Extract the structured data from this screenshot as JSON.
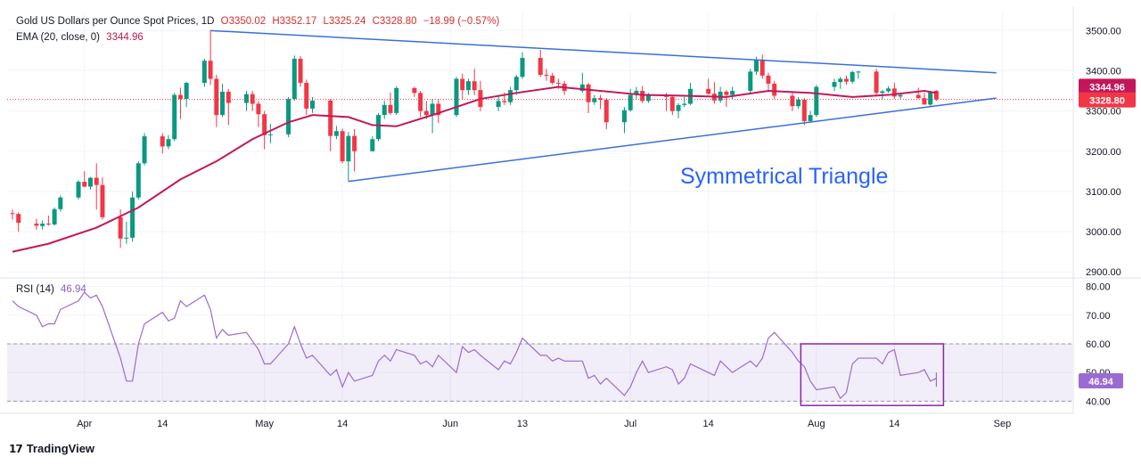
{
  "legend": {
    "symbol": "Gold US Dollars per Ounce Spot Prices, 1D",
    "open": "O3350.02",
    "high": "H3352.17",
    "low": "L3325.24",
    "close": "C3328.80",
    "change": "−18.99 (−0.57%)",
    "ema_label": "EMA (20, close, 0)",
    "ema_value": "3344.96",
    "rsi_label": "RSI (14)",
    "rsi_value": "46.94"
  },
  "annotation": "Symmetrical Triangle",
  "brand": "TradingView",
  "colors": {
    "up": "#089981",
    "down": "#f23645",
    "ema": "#c2185b",
    "rsi": "#9c6ad3",
    "trendline": "#3a6fd8",
    "box": "#8e24aa"
  },
  "chart_data": {
    "type": "candlestick",
    "x_ticks": [
      {
        "label": "Apr",
        "date": "2025-04-01"
      },
      {
        "label": "14",
        "date": "2025-04-14"
      },
      {
        "label": "May",
        "date": "2025-05-01"
      },
      {
        "label": "14",
        "date": "2025-05-14"
      },
      {
        "label": "Jun",
        "date": "2025-06-01"
      },
      {
        "label": "13",
        "date": "2025-06-13"
      },
      {
        "label": "Jul",
        "date": "2025-07-01"
      },
      {
        "label": "14",
        "date": "2025-07-14"
      },
      {
        "label": "Aug",
        "date": "2025-08-01"
      },
      {
        "label": "14",
        "date": "2025-08-14"
      },
      {
        "label": "Sep",
        "date": "2025-09-01"
      }
    ],
    "price_axis": {
      "ticks": [
        "3500.00",
        "3400.00",
        "3300.00",
        "3200.00",
        "3100.00",
        "3000.00",
        "2900.00"
      ],
      "range": [
        2885,
        3545
      ]
    },
    "rsi_axis": {
      "ticks": [
        "80.00",
        "70.00",
        "60.00",
        "50.00",
        "40.00"
      ],
      "range": [
        37,
        83
      ],
      "band": [
        40,
        60
      ]
    },
    "price_tags": [
      {
        "label": "3344.96",
        "value": 3344.96,
        "color": "#c2185b"
      },
      {
        "label": "3328.80",
        "value": 3328.8,
        "color": "#f23645"
      }
    ],
    "rsi_tag": {
      "label": "46.94",
      "value": 46.94
    },
    "candles": [
      [
        "2025-03-20",
        3046,
        3055,
        3030,
        3044
      ],
      [
        "2025-03-21",
        3044,
        3048,
        3000,
        3022
      ],
      [
        "2025-03-24",
        3020,
        3032,
        3005,
        3015
      ],
      [
        "2025-03-25",
        3014,
        3028,
        3005,
        3020
      ],
      [
        "2025-03-26",
        3020,
        3040,
        3015,
        3018
      ],
      [
        "2025-03-27",
        3018,
        3060,
        3015,
        3056
      ],
      [
        "2025-03-28",
        3056,
        3090,
        3050,
        3085
      ],
      [
        "2025-03-31",
        3085,
        3128,
        3080,
        3124
      ],
      [
        "2025-04-01",
        3124,
        3150,
        3110,
        3112
      ],
      [
        "2025-04-02",
        3112,
        3136,
        3105,
        3134
      ],
      [
        "2025-04-03",
        3134,
        3170,
        3055,
        3116
      ],
      [
        "2025-04-04",
        3116,
        3135,
        3030,
        3036
      ],
      [
        "2025-04-07",
        3036,
        3055,
        2960,
        2983
      ],
      [
        "2025-04-08",
        2983,
        3025,
        2970,
        2985
      ],
      [
        "2025-04-09",
        2985,
        3100,
        2975,
        3085
      ],
      [
        "2025-04-10",
        3085,
        3175,
        3080,
        3170
      ],
      [
        "2025-04-11",
        3170,
        3245,
        3165,
        3237
      ],
      [
        "2025-04-14",
        3237,
        3245,
        3195,
        3212
      ],
      [
        "2025-04-15",
        3212,
        3240,
        3205,
        3230
      ],
      [
        "2025-04-16",
        3230,
        3345,
        3225,
        3340
      ],
      [
        "2025-04-17",
        3340,
        3358,
        3280,
        3330
      ],
      [
        "2025-04-18",
        3330,
        3372,
        3310,
        3370
      ],
      [
        "2025-04-21",
        3370,
        3430,
        3360,
        3425
      ],
      [
        "2025-04-22",
        3425,
        3500,
        3365,
        3380
      ],
      [
        "2025-04-23",
        3380,
        3390,
        3260,
        3290
      ],
      [
        "2025-04-24",
        3290,
        3368,
        3285,
        3348
      ],
      [
        "2025-04-25",
        3348,
        3355,
        3265,
        3320
      ],
      [
        "2025-04-28",
        3320,
        3350,
        3300,
        3342
      ],
      [
        "2025-04-29",
        3342,
        3350,
        3300,
        3318
      ],
      [
        "2025-04-30",
        3318,
        3325,
        3260,
        3292
      ],
      [
        "2025-05-01",
        3292,
        3300,
        3205,
        3240
      ],
      [
        "2025-05-02",
        3240,
        3268,
        3220,
        3242
      ],
      [
        "2025-05-05",
        3242,
        3335,
        3235,
        3330
      ],
      [
        "2025-05-06",
        3330,
        3438,
        3325,
        3430
      ],
      [
        "2025-05-07",
        3430,
        3436,
        3360,
        3370
      ],
      [
        "2025-05-08",
        3370,
        3378,
        3290,
        3306
      ],
      [
        "2025-05-09",
        3306,
        3335,
        3295,
        3326
      ],
      [
        "2025-05-12",
        3326,
        3330,
        3200,
        3238
      ],
      [
        "2025-05-13",
        3238,
        3263,
        3230,
        3250
      ],
      [
        "2025-05-14",
        3250,
        3256,
        3170,
        3175
      ],
      [
        "2025-05-15",
        3175,
        3248,
        3125,
        3238
      ],
      [
        "2025-05-16",
        3238,
        3255,
        3150,
        3200
      ],
      [
        "2025-05-19",
        3200,
        3237,
        3200,
        3230
      ],
      [
        "2025-05-20",
        3230,
        3295,
        3225,
        3290
      ],
      [
        "2025-05-21",
        3290,
        3325,
        3280,
        3315
      ],
      [
        "2025-05-22",
        3315,
        3346,
        3290,
        3295
      ],
      [
        "2025-05-23",
        3295,
        3362,
        3290,
        3357
      ],
      [
        "2025-05-26",
        3357,
        3360,
        3335,
        3345
      ],
      [
        "2025-05-27",
        3345,
        3350,
        3285,
        3300
      ],
      [
        "2025-05-28",
        3300,
        3325,
        3280,
        3290
      ],
      [
        "2025-05-29",
        3290,
        3330,
        3245,
        3318
      ],
      [
        "2025-05-30",
        3318,
        3330,
        3270,
        3290
      ],
      [
        "2025-06-02",
        3290,
        3385,
        3285,
        3380
      ],
      [
        "2025-06-03",
        3380,
        3393,
        3330,
        3352
      ],
      [
        "2025-06-04",
        3352,
        3380,
        3340,
        3374
      ],
      [
        "2025-06-05",
        3374,
        3405,
        3340,
        3352
      ],
      [
        "2025-06-06",
        3352,
        3375,
        3300,
        3310
      ],
      [
        "2025-06-09",
        3310,
        3340,
        3300,
        3325
      ],
      [
        "2025-06-10",
        3325,
        3346,
        3315,
        3322
      ],
      [
        "2025-06-11",
        3322,
        3360,
        3315,
        3352
      ],
      [
        "2025-06-12",
        3352,
        3390,
        3340,
        3385
      ],
      [
        "2025-06-13",
        3385,
        3446,
        3380,
        3432
      ],
      [
        "2025-06-16",
        3432,
        3452,
        3385,
        3390
      ],
      [
        "2025-06-17",
        3390,
        3405,
        3375,
        3388
      ],
      [
        "2025-06-18",
        3388,
        3395,
        3365,
        3370
      ],
      [
        "2025-06-19",
        3370,
        3380,
        3355,
        3368
      ],
      [
        "2025-06-20",
        3368,
        3375,
        3340,
        3350
      ],
      [
        "2025-06-23",
        3350,
        3395,
        3345,
        3366
      ],
      [
        "2025-06-24",
        3366,
        3370,
        3295,
        3322
      ],
      [
        "2025-06-25",
        3322,
        3340,
        3315,
        3332
      ],
      [
        "2025-06-26",
        3332,
        3340,
        3305,
        3328
      ],
      [
        "2025-06-27",
        3328,
        3332,
        3255,
        3272
      ],
      [
        "2025-06-30",
        3272,
        3310,
        3245,
        3302
      ],
      [
        "2025-07-01",
        3302,
        3355,
        3298,
        3340
      ],
      [
        "2025-07-02",
        3340,
        3360,
        3330,
        3350
      ],
      [
        "2025-07-03",
        3350,
        3362,
        3320,
        3325
      ],
      [
        "2025-07-04",
        3325,
        3345,
        3320,
        3338
      ],
      [
        "2025-07-07",
        3338,
        3345,
        3300,
        3335
      ],
      [
        "2025-07-08",
        3335,
        3340,
        3290,
        3300
      ],
      [
        "2025-07-09",
        3300,
        3320,
        3282,
        3315
      ],
      [
        "2025-07-10",
        3315,
        3335,
        3310,
        3318
      ],
      [
        "2025-07-11",
        3318,
        3370,
        3315,
        3355
      ],
      [
        "2025-07-14",
        3355,
        3380,
        3340,
        3343
      ],
      [
        "2025-07-15",
        3343,
        3372,
        3318,
        3326
      ],
      [
        "2025-07-16",
        3326,
        3360,
        3320,
        3348
      ],
      [
        "2025-07-17",
        3348,
        3352,
        3310,
        3340
      ],
      [
        "2025-07-18",
        3340,
        3360,
        3330,
        3350
      ],
      [
        "2025-07-21",
        3350,
        3405,
        3345,
        3398
      ],
      [
        "2025-07-22",
        3398,
        3435,
        3390,
        3428
      ],
      [
        "2025-07-23",
        3428,
        3440,
        3380,
        3388
      ],
      [
        "2025-07-24",
        3388,
        3395,
        3350,
        3368
      ],
      [
        "2025-07-25",
        3368,
        3375,
        3330,
        3338
      ],
      [
        "2025-07-28",
        3338,
        3345,
        3300,
        3312
      ],
      [
        "2025-07-29",
        3312,
        3335,
        3305,
        3328
      ],
      [
        "2025-07-30",
        3328,
        3332,
        3265,
        3275
      ],
      [
        "2025-07-31",
        3275,
        3300,
        3270,
        3290
      ],
      [
        "2025-08-01",
        3290,
        3365,
        3285,
        3360
      ],
      [
        "2025-08-04",
        3360,
        3380,
        3350,
        3372
      ],
      [
        "2025-08-05",
        3372,
        3385,
        3355,
        3380
      ],
      [
        "2025-08-06",
        3380,
        3388,
        3365,
        3373
      ],
      [
        "2025-08-07",
        3373,
        3400,
        3368,
        3397
      ],
      [
        "2025-08-08",
        3397,
        3400,
        3380,
        3398
      ],
      [
        "2025-08-11",
        3398,
        3405,
        3340,
        3345
      ],
      [
        "2025-08-12",
        3345,
        3352,
        3330,
        3349
      ],
      [
        "2025-08-13",
        3349,
        3362,
        3345,
        3356
      ],
      [
        "2025-08-14",
        3356,
        3370,
        3330,
        3336
      ],
      [
        "2025-08-15",
        3336,
        3345,
        3330,
        3340
      ],
      [
        "2025-08-18",
        3340,
        3358,
        3330,
        3332
      ],
      [
        "2025-08-19",
        3332,
        3345,
        3318,
        3316
      ],
      [
        "2025-08-20",
        3316,
        3350,
        3311,
        3348
      ],
      [
        "2025-08-21",
        3350.02,
        3352.17,
        3325.24,
        3328.8
      ]
    ],
    "ema": [
      [
        0,
        2950
      ],
      [
        4,
        2970
      ],
      [
        10,
        3010
      ],
      [
        15,
        3060
      ],
      [
        20,
        3130
      ],
      [
        24,
        3175
      ],
      [
        28,
        3230
      ],
      [
        32,
        3272
      ],
      [
        36,
        3290
      ],
      [
        40,
        3285
      ],
      [
        42,
        3265
      ],
      [
        46,
        3262
      ],
      [
        50,
        3290
      ],
      [
        56,
        3330
      ],
      [
        60,
        3345
      ],
      [
        65,
        3360
      ],
      [
        70,
        3350
      ],
      [
        75,
        3340
      ],
      [
        80,
        3338
      ],
      [
        85,
        3335
      ],
      [
        90,
        3350
      ],
      [
        95,
        3345
      ],
      [
        100,
        3335
      ],
      [
        104,
        3340
      ],
      [
        108,
        3350
      ],
      [
        112,
        3345
      ],
      [
        114,
        3344.96
      ]
    ],
    "rsi": [
      [
        0,
        75
      ],
      [
        1,
        73
      ],
      [
        2,
        70
      ],
      [
        3,
        66
      ],
      [
        4,
        67
      ],
      [
        5,
        67
      ],
      [
        6,
        72
      ],
      [
        7,
        75
      ],
      [
        8,
        78
      ],
      [
        9,
        76
      ],
      [
        10,
        77
      ],
      [
        11,
        73
      ],
      [
        12,
        55
      ],
      [
        13,
        47
      ],
      [
        14,
        47
      ],
      [
        15,
        60
      ],
      [
        16,
        67
      ],
      [
        17,
        71
      ],
      [
        18,
        68
      ],
      [
        19,
        69
      ],
      [
        20,
        75
      ],
      [
        21,
        73
      ],
      [
        22,
        77
      ],
      [
        23,
        72
      ],
      [
        24,
        62
      ],
      [
        25,
        65
      ],
      [
        26,
        63
      ],
      [
        27,
        64
      ],
      [
        28,
        61
      ],
      [
        29,
        58
      ],
      [
        30,
        53
      ],
      [
        31,
        53
      ],
      [
        32,
        60
      ],
      [
        33,
        66
      ],
      [
        34,
        60
      ],
      [
        35,
        55
      ],
      [
        36,
        56
      ],
      [
        37,
        49
      ],
      [
        38,
        51
      ],
      [
        39,
        45
      ],
      [
        40,
        50
      ],
      [
        41,
        47
      ],
      [
        42,
        49
      ],
      [
        43,
        54
      ],
      [
        44,
        56
      ],
      [
        45,
        54
      ],
      [
        46,
        58
      ],
      [
        47,
        56
      ],
      [
        48,
        53
      ],
      [
        49,
        54
      ],
      [
        50,
        52
      ],
      [
        51,
        56
      ],
      [
        52,
        50
      ],
      [
        53,
        59
      ],
      [
        54,
        57
      ],
      [
        55,
        58
      ],
      [
        56,
        56
      ],
      [
        57,
        51
      ],
      [
        58,
        54
      ],
      [
        59,
        53
      ],
      [
        60,
        57
      ],
      [
        61,
        62
      ],
      [
        62,
        56
      ],
      [
        63,
        56
      ],
      [
        64,
        54
      ],
      [
        65,
        55
      ],
      [
        66,
        54
      ],
      [
        67,
        54
      ],
      [
        68,
        48
      ],
      [
        69,
        49
      ],
      [
        70,
        46
      ],
      [
        71,
        48
      ],
      [
        72,
        42
      ],
      [
        73,
        45
      ],
      [
        74,
        50
      ],
      [
        75,
        54
      ],
      [
        76,
        50
      ],
      [
        77,
        52
      ],
      [
        78,
        51
      ],
      [
        79,
        46
      ],
      [
        80,
        48
      ],
      [
        81,
        53
      ],
      [
        82,
        50
      ],
      [
        83,
        49
      ],
      [
        84,
        54
      ],
      [
        85,
        52
      ],
      [
        86,
        50
      ],
      [
        87,
        54
      ],
      [
        88,
        52
      ],
      [
        89,
        55
      ],
      [
        90,
        62
      ],
      [
        91,
        64
      ],
      [
        92,
        57
      ],
      [
        93,
        54
      ],
      [
        94,
        52
      ],
      [
        95,
        47
      ],
      [
        96,
        44
      ],
      [
        97,
        45
      ],
      [
        98,
        41
      ],
      [
        99,
        43
      ],
      [
        100,
        53
      ],
      [
        101,
        55
      ],
      [
        102,
        55
      ],
      [
        103,
        53
      ],
      [
        104,
        57
      ],
      [
        105,
        58
      ],
      [
        106,
        49
      ],
      [
        107,
        50
      ],
      [
        108,
        51
      ],
      [
        109,
        47
      ],
      [
        110,
        48
      ],
      [
        111,
        47
      ],
      [
        112,
        45
      ],
      [
        113,
        50
      ],
      [
        114,
        46.94
      ]
    ],
    "trendlines": [
      {
        "from": [
          "2025-04-22",
          3500
        ],
        "to": [
          "2025-08-31",
          3395
        ]
      },
      {
        "from": [
          "2025-05-15",
          3125
        ],
        "to": [
          "2025-08-31",
          3332
        ]
      }
    ],
    "rsi_box": {
      "x": [
        "2025-07-30",
        "2025-08-21"
      ],
      "y": [
        38.5,
        60
      ]
    }
  }
}
